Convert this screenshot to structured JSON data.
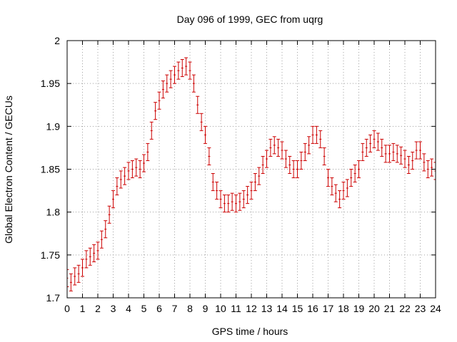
{
  "chart_data": {
    "type": "scatter",
    "title": "Day 096 of 1999, GEC from uqrg",
    "xlabel": "GPS time / hours",
    "ylabel": "Global Electron Content / GECUs",
    "xlim": [
      0,
      24
    ],
    "ylim": [
      1.7,
      2.0
    ],
    "xticks": [
      0,
      1,
      2,
      3,
      4,
      5,
      6,
      7,
      8,
      9,
      10,
      11,
      12,
      13,
      14,
      15,
      16,
      17,
      18,
      19,
      20,
      21,
      22,
      23,
      24
    ],
    "yticks": [
      1.7,
      1.75,
      1.8,
      1.85,
      1.9,
      1.95,
      2.0
    ],
    "ytick_labels": [
      "1.7",
      "1.75",
      "1.8",
      "1.85",
      "1.9",
      "1.95",
      "2"
    ],
    "grid": true,
    "error": 0.01,
    "series": [
      {
        "name": "GEC",
        "color": "#cc0000",
        "x": [
          0,
          0.25,
          0.5,
          0.75,
          1,
          1.25,
          1.5,
          1.75,
          2,
          2.25,
          2.5,
          2.75,
          3,
          3.25,
          3.5,
          3.75,
          4,
          4.25,
          4.5,
          4.75,
          5,
          5.25,
          5.5,
          5.75,
          6,
          6.25,
          6.5,
          6.75,
          7,
          7.25,
          7.5,
          7.75,
          8,
          8.25,
          8.5,
          8.75,
          9,
          9.25,
          9.5,
          9.75,
          10,
          10.25,
          10.5,
          10.75,
          11,
          11.25,
          11.5,
          11.75,
          12,
          12.25,
          12.5,
          12.75,
          13,
          13.25,
          13.5,
          13.75,
          14,
          14.25,
          14.5,
          14.75,
          15,
          15.25,
          15.5,
          15.75,
          16,
          16.25,
          16.5,
          16.75,
          17,
          17.25,
          17.5,
          17.75,
          18,
          18.25,
          18.5,
          18.75,
          19,
          19.25,
          19.5,
          19.75,
          20,
          20.25,
          20.5,
          20.75,
          21,
          21.25,
          21.5,
          21.75,
          22,
          22.25,
          22.5,
          22.75,
          23,
          23.25,
          23.5,
          23.75,
          24
        ],
        "y": [
          1.723,
          1.718,
          1.725,
          1.728,
          1.735,
          1.745,
          1.748,
          1.752,
          1.755,
          1.768,
          1.78,
          1.797,
          1.815,
          1.83,
          1.838,
          1.842,
          1.848,
          1.85,
          1.852,
          1.85,
          1.857,
          1.87,
          1.895,
          1.918,
          1.93,
          1.943,
          1.95,
          1.955,
          1.96,
          1.965,
          1.968,
          1.97,
          1.965,
          1.95,
          1.925,
          1.905,
          1.89,
          1.865,
          1.835,
          1.825,
          1.815,
          1.81,
          1.81,
          1.812,
          1.81,
          1.812,
          1.815,
          1.82,
          1.825,
          1.835,
          1.842,
          1.855,
          1.862,
          1.875,
          1.878,
          1.875,
          1.872,
          1.862,
          1.855,
          1.85,
          1.85,
          1.86,
          1.87,
          1.878,
          1.89,
          1.89,
          1.885,
          1.865,
          1.84,
          1.83,
          1.822,
          1.815,
          1.825,
          1.828,
          1.84,
          1.845,
          1.85,
          1.87,
          1.875,
          1.88,
          1.885,
          1.882,
          1.875,
          1.868,
          1.868,
          1.87,
          1.868,
          1.866,
          1.862,
          1.855,
          1.86,
          1.872,
          1.872,
          1.858,
          1.85,
          1.852,
          1.848
        ]
      }
    ]
  }
}
